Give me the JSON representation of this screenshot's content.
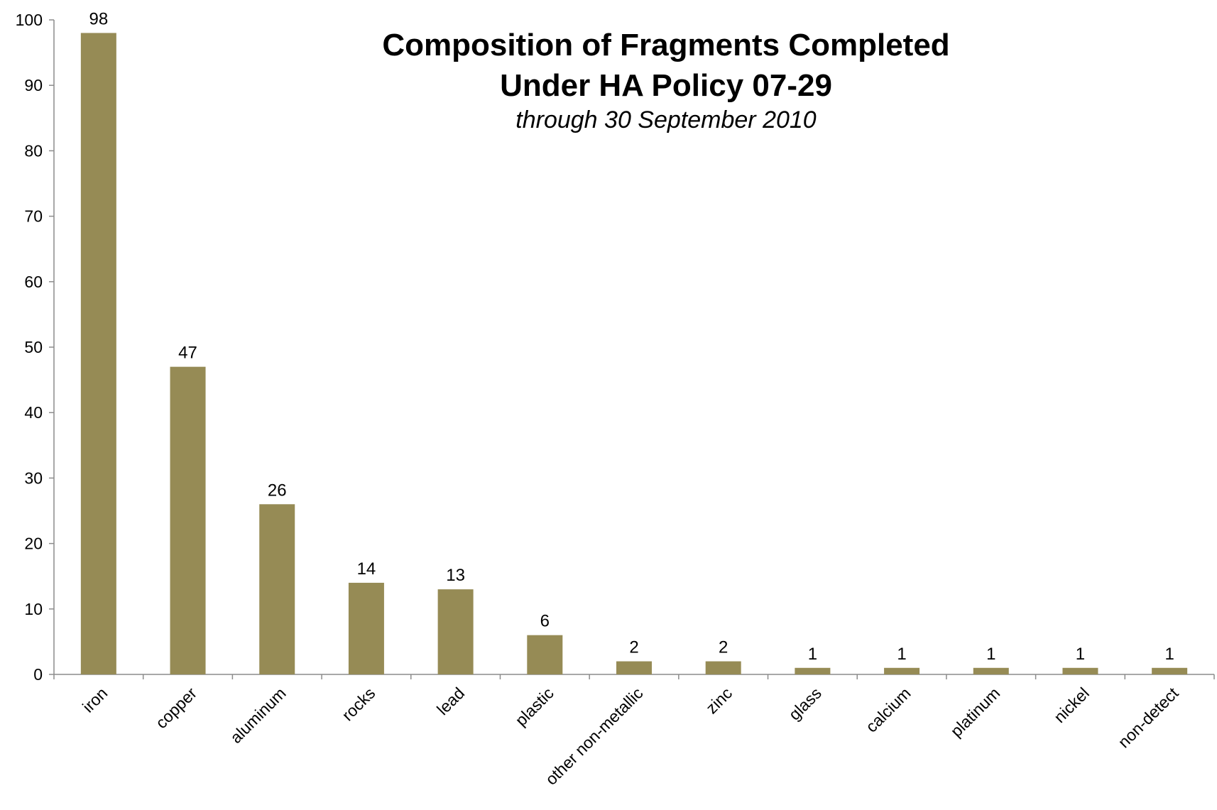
{
  "chart_data": {
    "type": "bar",
    "title_lines": [
      "Composition of Fragments Completed",
      "Under HA Policy 07-29"
    ],
    "subtitle": "through 30 September 2010",
    "categories": [
      "iron",
      "copper",
      "aluminum",
      "rocks",
      "lead",
      "plastic",
      "other non-metallic",
      "zinc",
      "glass",
      "calcium",
      "platinum",
      "nickel",
      "non-detect"
    ],
    "values": [
      98,
      47,
      26,
      14,
      13,
      6,
      2,
      2,
      1,
      1,
      1,
      1,
      1
    ],
    "data_labels": [
      "98",
      "47",
      "26",
      "14",
      "13",
      "6",
      "2",
      "2",
      "1",
      "1",
      "1",
      "1",
      "1"
    ],
    "y_ticks": [
      "0",
      "10",
      "20",
      "30",
      "40",
      "50",
      "60",
      "70",
      "80",
      "90",
      "100"
    ],
    "ylim": [
      0,
      100
    ],
    "xlabel": "",
    "ylabel": "",
    "grid": false,
    "legend": "none",
    "bar_color": "#968b55"
  }
}
